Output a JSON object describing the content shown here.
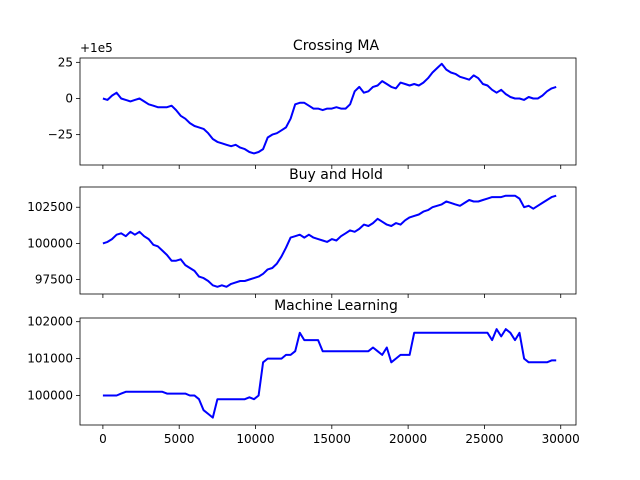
{
  "chart_data": [
    {
      "type": "line",
      "title": "Crossing MA",
      "xlabel": "",
      "ylabel": "",
      "offset_text": "+1e5",
      "xlim": [
        -1500,
        31000
      ],
      "ylim": [
        -46,
        28
      ],
      "yticks": [
        25,
        0,
        -25
      ],
      "ytick_labels": [
        "25",
        "0",
        "−25"
      ],
      "xticks": [
        0,
        5000,
        10000,
        15000,
        20000,
        25000,
        30000
      ],
      "xtick_labels": [],
      "grid": false,
      "color": "#0000ff",
      "x": [
        0,
        300,
        600,
        900,
        1200,
        1500,
        1800,
        2100,
        2400,
        2700,
        3000,
        3300,
        3600,
        3900,
        4200,
        4500,
        4800,
        5100,
        5400,
        5700,
        6000,
        6300,
        6600,
        6900,
        7200,
        7500,
        7800,
        8100,
        8400,
        8700,
        9000,
        9300,
        9600,
        9900,
        10200,
        10500,
        10800,
        11100,
        11400,
        11700,
        12000,
        12300,
        12600,
        12900,
        13200,
        13500,
        13800,
        14100,
        14400,
        14700,
        15000,
        15300,
        15600,
        15900,
        16200,
        16500,
        16800,
        17100,
        17400,
        17700,
        18000,
        18300,
        18600,
        18900,
        19200,
        19500,
        19800,
        20100,
        20400,
        20700,
        21000,
        21300,
        21600,
        21900,
        22200,
        22500,
        22800,
        23100,
        23400,
        23700,
        24000,
        24300,
        24600,
        24900,
        25200,
        25500,
        25800,
        26100,
        26400,
        26700,
        27000,
        27300,
        27600,
        27900,
        28200,
        28500,
        28800,
        29100,
        29400,
        29700
      ],
      "y": [
        0,
        -1,
        2,
        4,
        0,
        -1,
        -2,
        -1,
        0,
        -2,
        -4,
        -5,
        -6,
        -6,
        -6,
        -5,
        -8,
        -12,
        -14,
        -17,
        -19,
        -20,
        -21,
        -24,
        -28,
        -30,
        -31,
        -32,
        -33,
        -32,
        -34,
        -35,
        -37,
        -38,
        -37,
        -35,
        -27,
        -25,
        -24,
        -22,
        -20,
        -14,
        -4,
        -3,
        -3,
        -5,
        -7,
        -7,
        -8,
        -7,
        -7,
        -6,
        -7,
        -7,
        -4,
        5,
        8,
        4,
        5,
        8,
        9,
        12,
        10,
        8,
        7,
        11,
        10,
        9,
        10,
        9,
        11,
        14,
        18,
        21,
        24,
        20,
        18,
        17,
        15,
        14,
        13,
        16,
        14,
        10,
        9,
        6,
        4,
        6,
        3,
        1,
        0,
        0,
        -1,
        1,
        0,
        0,
        2,
        5,
        7,
        8
      ]
    },
    {
      "type": "line",
      "title": "Buy and Hold",
      "xlabel": "",
      "ylabel": "",
      "xlim": [
        -1500,
        31000
      ],
      "ylim": [
        96500,
        103900
      ],
      "yticks": [
        102500,
        100000,
        97500
      ],
      "ytick_labels": [
        "102500",
        "100000",
        "97500"
      ],
      "xticks": [
        0,
        5000,
        10000,
        15000,
        20000,
        25000,
        30000
      ],
      "xtick_labels": [],
      "grid": false,
      "color": "#0000ff",
      "x": [
        0,
        300,
        600,
        900,
        1200,
        1500,
        1800,
        2100,
        2400,
        2700,
        3000,
        3300,
        3600,
        3900,
        4200,
        4500,
        4800,
        5100,
        5400,
        5700,
        6000,
        6300,
        6600,
        6900,
        7200,
        7500,
        7800,
        8100,
        8400,
        8700,
        9000,
        9300,
        9600,
        9900,
        10200,
        10500,
        10800,
        11100,
        11400,
        11700,
        12000,
        12300,
        12600,
        12900,
        13200,
        13500,
        13800,
        14100,
        14400,
        14700,
        15000,
        15300,
        15600,
        15900,
        16200,
        16500,
        16800,
        17100,
        17400,
        17700,
        18000,
        18300,
        18600,
        18900,
        19200,
        19500,
        19800,
        20100,
        20400,
        20700,
        21000,
        21300,
        21600,
        21900,
        22200,
        22500,
        22800,
        23100,
        23400,
        23700,
        24000,
        24300,
        24600,
        24900,
        25200,
        25500,
        25800,
        26100,
        26400,
        26700,
        27000,
        27300,
        27600,
        27900,
        28200,
        28500,
        28800,
        29100,
        29400,
        29700
      ],
      "y": [
        100000,
        100100,
        100300,
        100600,
        100700,
        100500,
        100800,
        100600,
        100800,
        100500,
        100300,
        99900,
        99800,
        99500,
        99200,
        98800,
        98800,
        98900,
        98500,
        98300,
        98100,
        97700,
        97600,
        97400,
        97100,
        97000,
        97100,
        97000,
        97200,
        97300,
        97400,
        97400,
        97500,
        97600,
        97700,
        97900,
        98200,
        98300,
        98600,
        99100,
        99700,
        100400,
        100500,
        100600,
        100400,
        100600,
        100400,
        100300,
        100200,
        100100,
        100300,
        100200,
        100500,
        100700,
        100900,
        100800,
        101000,
        101300,
        101200,
        101400,
        101700,
        101500,
        101300,
        101200,
        101400,
        101300,
        101600,
        101800,
        101900,
        102000,
        102200,
        102300,
        102500,
        102600,
        102700,
        102900,
        102800,
        102700,
        102600,
        102800,
        103000,
        102900,
        102900,
        103000,
        103100,
        103200,
        103200,
        103200,
        103300,
        103300,
        103300,
        103100,
        102500,
        102600,
        102400,
        102600,
        102800,
        103000,
        103200,
        103300
      ]
    },
    {
      "type": "line",
      "title": "Machine Learning",
      "xlabel": "",
      "ylabel": "",
      "xlim": [
        -1500,
        31000
      ],
      "ylim": [
        99200,
        102100
      ],
      "yticks": [
        102000,
        101000,
        100000
      ],
      "ytick_labels": [
        "102000",
        "101000",
        "100000"
      ],
      "xticks": [
        0,
        5000,
        10000,
        15000,
        20000,
        25000,
        30000
      ],
      "xtick_labels": [
        "0",
        "5000",
        "10000",
        "15000",
        "20000",
        "25000",
        "30000"
      ],
      "grid": false,
      "color": "#0000ff",
      "x": [
        0,
        300,
        600,
        900,
        1200,
        1500,
        1800,
        2100,
        2400,
        2700,
        3000,
        3300,
        3600,
        3900,
        4200,
        4500,
        4800,
        5100,
        5400,
        5700,
        6000,
        6300,
        6600,
        6900,
        7200,
        7500,
        7800,
        8100,
        8400,
        8700,
        9000,
        9300,
        9600,
        9900,
        10200,
        10500,
        10800,
        11100,
        11400,
        11700,
        12000,
        12300,
        12600,
        12900,
        13200,
        13500,
        13800,
        14100,
        14400,
        14700,
        15000,
        15300,
        15600,
        15900,
        16200,
        16500,
        16800,
        17100,
        17400,
        17700,
        18000,
        18300,
        18600,
        18900,
        19200,
        19500,
        19800,
        20100,
        20400,
        20700,
        21000,
        21300,
        21600,
        21900,
        22200,
        22500,
        22800,
        23100,
        23400,
        23700,
        24000,
        24300,
        24600,
        24900,
        25200,
        25500,
        25800,
        26100,
        26400,
        26700,
        27000,
        27300,
        27600,
        27900,
        28200,
        28500,
        28800,
        29100,
        29400,
        29700
      ],
      "y": [
        100000,
        100000,
        100000,
        100000,
        100050,
        100100,
        100100,
        100100,
        100100,
        100100,
        100100,
        100100,
        100100,
        100100,
        100050,
        100050,
        100050,
        100050,
        100050,
        100000,
        100000,
        99900,
        99600,
        99500,
        99400,
        99900,
        99900,
        99900,
        99900,
        99900,
        99900,
        99900,
        99950,
        99900,
        100000,
        100900,
        101000,
        101000,
        101000,
        101000,
        101100,
        101100,
        101200,
        101700,
        101500,
        101500,
        101500,
        101500,
        101200,
        101200,
        101200,
        101200,
        101200,
        101200,
        101200,
        101200,
        101200,
        101200,
        101200,
        101300,
        101200,
        101100,
        101300,
        100900,
        101000,
        101100,
        101100,
        101100,
        101700,
        101700,
        101700,
        101700,
        101700,
        101700,
        101700,
        101700,
        101700,
        101700,
        101700,
        101700,
        101700,
        101700,
        101700,
        101700,
        101700,
        101500,
        101800,
        101600,
        101800,
        101700,
        101500,
        101700,
        101000,
        100900,
        100900,
        100900,
        100900,
        100900,
        100950,
        100950
      ]
    }
  ]
}
